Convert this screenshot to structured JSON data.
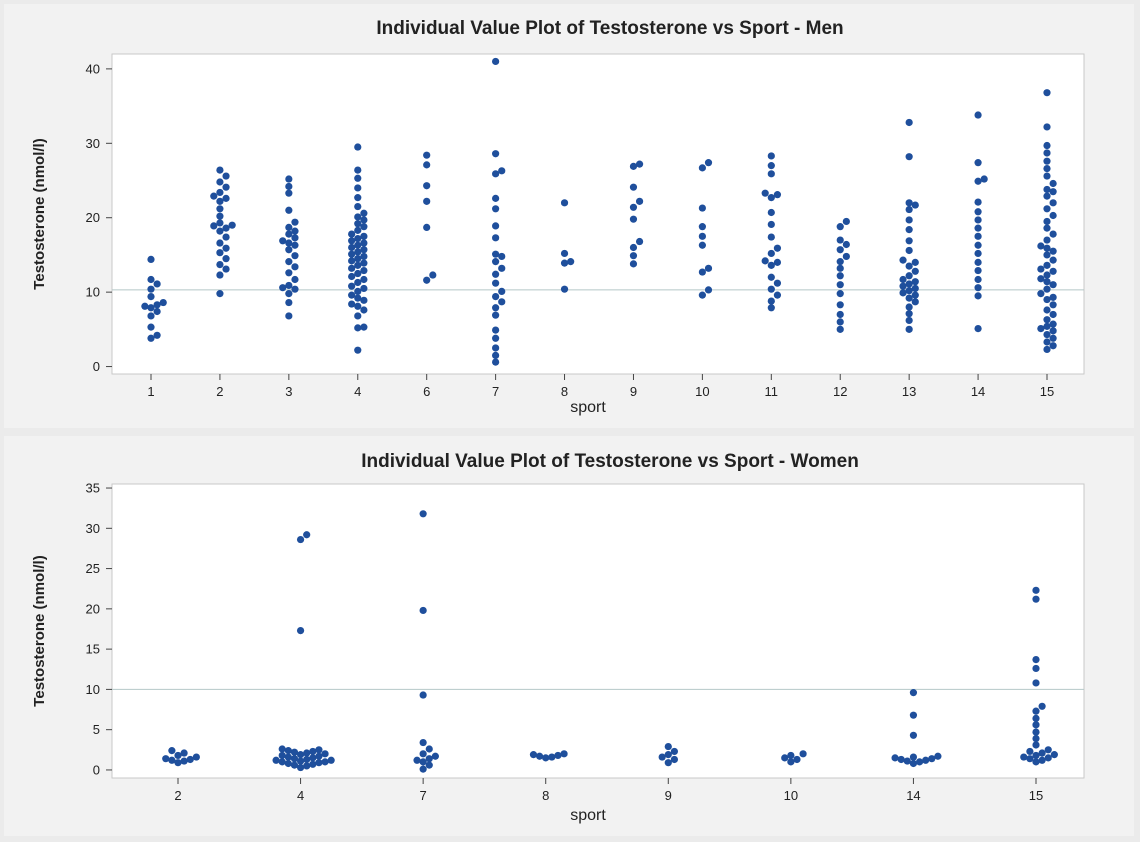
{
  "chart_data": [
    {
      "id": "men",
      "type": "scatter",
      "title": "Individual Value Plot of Testosterone vs Sport - Men",
      "xlabel": "sport",
      "ylabel": "Testosterone (nmol/l)",
      "categories": [
        "1",
        "2",
        "3",
        "4",
        "6",
        "7",
        "8",
        "9",
        "10",
        "11",
        "12",
        "13",
        "14",
        "15"
      ],
      "ylim": [
        -1,
        42
      ],
      "yticks": [
        0,
        10,
        20,
        30,
        40
      ],
      "reference_line": 10.3,
      "values": {
        "1": [
          3.8,
          4.2,
          5.3,
          6.8,
          7.4,
          7.9,
          8.1,
          8.3,
          8.6,
          9.4,
          10.4,
          11.1,
          11.7,
          14.4
        ],
        "2": [
          9.8,
          12.3,
          13.1,
          13.7,
          14.5,
          15.3,
          15.9,
          16.6,
          17.4,
          18.2,
          18.6,
          18.9,
          19.0,
          19.3,
          20.2,
          21.2,
          22.2,
          22.6,
          22.9,
          23.4,
          24.1,
          24.8,
          25.6,
          26.4
        ],
        "3": [
          6.8,
          8.6,
          9.8,
          10.4,
          10.6,
          10.9,
          11.7,
          12.6,
          13.4,
          14.1,
          14.9,
          15.7,
          16.3,
          16.6,
          16.9,
          17.3,
          17.8,
          18.2,
          18.7,
          19.4,
          21.0,
          23.3,
          24.2,
          25.2
        ],
        "4": [
          2.2,
          5.2,
          5.3,
          6.8,
          7.6,
          8.1,
          8.4,
          8.9,
          9.2,
          9.6,
          10.1,
          10.5,
          10.8,
          11.3,
          11.7,
          12.1,
          12.5,
          12.9,
          13.2,
          13.6,
          13.9,
          14.2,
          14.5,
          14.8,
          15.1,
          15.4,
          15.7,
          16.0,
          16.3,
          16.6,
          16.9,
          17.2,
          17.5,
          17.8,
          18.3,
          18.8,
          19.2,
          19.7,
          20.1,
          20.6,
          21.5,
          22.7,
          24.0,
          25.3,
          26.4,
          29.5
        ],
        "6": [
          11.6,
          12.3,
          18.7,
          22.2,
          24.3,
          27.1,
          28.4
        ],
        "7": [
          0.6,
          1.5,
          2.5,
          3.8,
          4.9,
          6.9,
          7.9,
          8.7,
          9.4,
          10.1,
          11.2,
          12.4,
          13.2,
          14.1,
          14.8,
          15.1,
          17.3,
          18.9,
          21.2,
          22.6,
          25.9,
          26.3,
          28.6,
          41.0
        ],
        "8": [
          10.4,
          13.9,
          14.1,
          15.2,
          22.0
        ],
        "9": [
          13.8,
          14.9,
          16.0,
          16.8,
          19.8,
          21.4,
          22.2,
          24.1,
          26.9,
          27.2
        ],
        "10": [
          9.6,
          10.3,
          12.7,
          13.2,
          16.3,
          17.5,
          18.8,
          21.3,
          26.7,
          27.4
        ],
        "11": [
          7.9,
          8.8,
          9.6,
          10.4,
          11.2,
          12.0,
          13.6,
          14.0,
          14.2,
          15.2,
          15.9,
          17.4,
          19.1,
          20.7,
          22.7,
          23.1,
          23.3,
          25.9,
          27.0,
          28.3
        ],
        "12": [
          5.0,
          6.0,
          7.0,
          8.3,
          9.8,
          11.0,
          12.2,
          13.2,
          14.1,
          14.8,
          15.7,
          16.4,
          17.0,
          18.8,
          19.5
        ],
        "13": [
          5.0,
          6.2,
          7.1,
          8.0,
          8.7,
          9.2,
          9.6,
          9.9,
          10.2,
          10.5,
          10.8,
          11.1,
          11.4,
          11.7,
          12.2,
          12.8,
          13.5,
          14.0,
          14.3,
          15.6,
          16.9,
          18.4,
          19.7,
          21.1,
          21.7,
          22.0,
          28.2,
          32.8
        ],
        "14": [
          5.1,
          9.5,
          10.6,
          11.7,
          12.9,
          14.0,
          15.2,
          16.3,
          17.5,
          18.6,
          19.7,
          20.8,
          22.1,
          24.9,
          25.2,
          27.4,
          33.8
        ],
        "15": [
          2.3,
          2.8,
          3.3,
          3.8,
          4.3,
          4.8,
          5.1,
          5.4,
          5.7,
          6.3,
          7.0,
          7.6,
          8.3,
          9.0,
          9.3,
          9.8,
          10.4,
          11.0,
          11.4,
          11.8,
          12.3,
          12.8,
          13.1,
          13.6,
          14.3,
          15.0,
          15.5,
          15.9,
          16.2,
          17.0,
          17.8,
          18.6,
          19.5,
          20.3,
          21.2,
          22.0,
          22.9,
          23.5,
          23.8,
          24.6,
          25.6,
          26.6,
          27.6,
          28.7,
          29.7,
          32.2,
          36.8
        ]
      }
    },
    {
      "id": "women",
      "type": "scatter",
      "title": "Individual Value Plot of Testosterone vs Sport - Women",
      "xlabel": "sport",
      "ylabel": "Testosterone (nmol/l)",
      "categories": [
        "2",
        "4",
        "7",
        "8",
        "9",
        "10",
        "14",
        "15"
      ],
      "ylim": [
        -1,
        35.5
      ],
      "yticks": [
        0,
        5,
        10,
        15,
        20,
        25,
        30,
        35
      ],
      "reference_line": 10,
      "values": {
        "2": [
          0.9,
          1.1,
          1.2,
          1.3,
          1.4,
          1.6,
          1.8,
          2.1,
          2.4
        ],
        "4": [
          0.3,
          0.5,
          0.6,
          0.7,
          0.8,
          0.9,
          1.0,
          1.0,
          1.1,
          1.2,
          1.2,
          1.3,
          1.4,
          1.5,
          1.6,
          1.7,
          1.8,
          1.9,
          2.0,
          2.1,
          2.2,
          2.3,
          2.4,
          2.5,
          2.6,
          17.3,
          28.6,
          29.2
        ],
        "7": [
          0.1,
          0.6,
          1.0,
          1.2,
          1.4,
          1.7,
          2.0,
          2.6,
          3.4,
          9.3,
          19.8,
          31.8
        ],
        "8": [
          1.5,
          1.6,
          1.7,
          1.8,
          1.9,
          2.0
        ],
        "9": [
          0.9,
          1.3,
          1.6,
          1.9,
          2.3,
          2.9
        ],
        "10": [
          1.0,
          1.3,
          1.5,
          1.8,
          2.0
        ],
        "14": [
          0.8,
          1.0,
          1.1,
          1.2,
          1.3,
          1.4,
          1.5,
          1.6,
          1.7,
          4.3,
          6.8,
          9.6
        ],
        "15": [
          1.0,
          1.2,
          1.4,
          1.5,
          1.6,
          1.8,
          1.9,
          2.1,
          2.3,
          2.5,
          3.1,
          3.9,
          4.7,
          5.6,
          6.4,
          7.3,
          7.9,
          10.8,
          12.6,
          13.7,
          21.2,
          22.3
        ]
      }
    }
  ]
}
